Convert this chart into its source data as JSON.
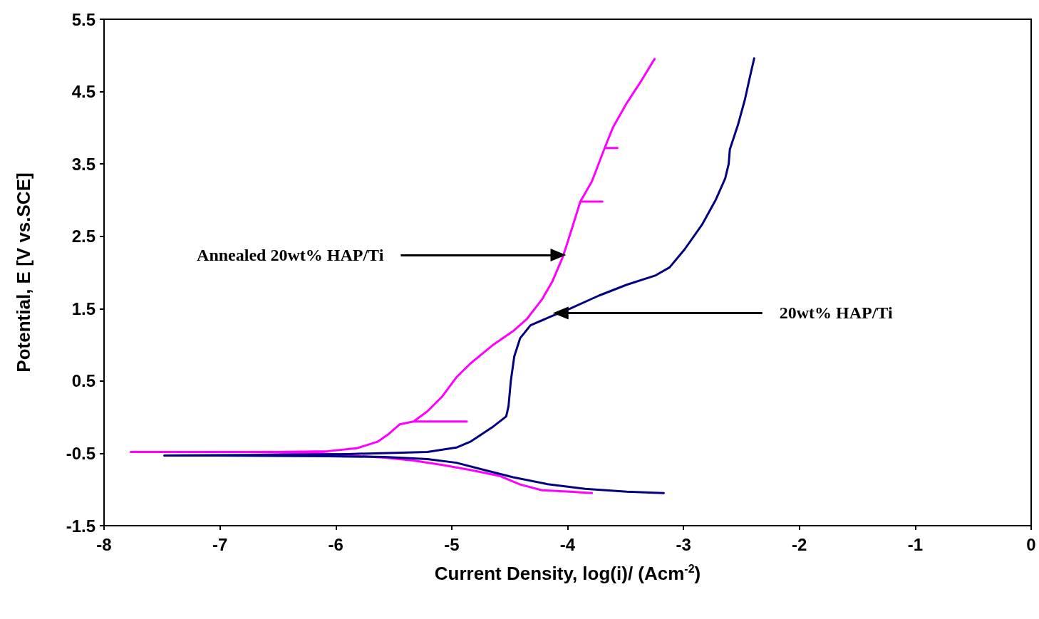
{
  "chart_data": {
    "type": "line",
    "xlabel": "Current Density, log(i)/ (Acm$^{-2}$)",
    "ylabel": "Potential, E [V vs.SCE]",
    "xlim": [
      -8,
      0
    ],
    "xticks": [
      -8,
      -7,
      -6,
      -5,
      -4,
      -3,
      -2,
      -1,
      0
    ],
    "ylim": [
      -1.5,
      5.5
    ],
    "yticks": [
      -1.5,
      -0.5,
      0.5,
      1.5,
      2.5,
      3.5,
      4.5,
      5.5
    ],
    "marker": "none",
    "line_style": "solid",
    "series": [
      {
        "color": "#ff00ff",
        "x": [
          -3.79,
          -3.98,
          -4.22,
          -4.41,
          -4.59,
          -4.84,
          -5.08,
          -5.33,
          -5.58,
          -5.88,
          -6.13,
          -6.75,
          -7.77,
          -6.5,
          -6.07,
          -5.82,
          -5.64,
          -5.55,
          -5.45,
          -5.33,
          -4.87,
          -5.33,
          -5.21,
          -5.08,
          -4.96,
          -4.84,
          -4.65,
          -4.47,
          -4.35,
          -4.22,
          -4.13,
          -4.04,
          -3.98,
          -3.89,
          -3.7,
          -3.89,
          -3.79,
          -3.68,
          -3.57,
          -3.68,
          -3.61,
          -3.49,
          -3.36,
          -3.25
        ],
        "values": [
          -1.05,
          -1.03,
          -1.01,
          -0.93,
          -0.81,
          -0.73,
          -0.66,
          -0.6,
          -0.56,
          -0.53,
          -0.5,
          -0.48,
          -0.48,
          -0.48,
          -0.47,
          -0.43,
          -0.34,
          -0.24,
          -0.1,
          -0.06,
          -0.06,
          -0.06,
          0.08,
          0.29,
          0.55,
          0.74,
          0.99,
          1.19,
          1.36,
          1.63,
          1.88,
          2.22,
          2.52,
          2.98,
          2.98,
          2.98,
          3.26,
          3.72,
          3.72,
          3.72,
          4.0,
          4.34,
          4.66,
          4.95
        ]
      },
      {
        "color": "#000080",
        "x": [
          -3.17,
          -3.49,
          -3.85,
          -4.16,
          -4.47,
          -4.72,
          -4.96,
          -5.21,
          -5.58,
          -6.07,
          -7.05,
          -7.48,
          -6.5,
          -5.9,
          -5.21,
          -4.96,
          -4.84,
          -4.65,
          -4.53,
          -4.51,
          -4.49,
          -4.46,
          -4.41,
          -4.32,
          -4.16,
          -3.98,
          -3.73,
          -3.49,
          -3.24,
          -3.12,
          -2.99,
          -2.84,
          -2.72,
          -2.64,
          -2.61,
          -2.6,
          -2.53,
          -2.47,
          -2.43,
          -2.39
        ],
        "values": [
          -1.05,
          -1.03,
          -0.99,
          -0.93,
          -0.83,
          -0.73,
          -0.63,
          -0.58,
          -0.55,
          -0.54,
          -0.53,
          -0.53,
          -0.52,
          -0.51,
          -0.48,
          -0.42,
          -0.34,
          -0.14,
          0.01,
          0.15,
          0.5,
          0.84,
          1.09,
          1.27,
          1.38,
          1.5,
          1.68,
          1.83,
          1.96,
          2.07,
          2.32,
          2.66,
          3.01,
          3.3,
          3.5,
          3.7,
          4.04,
          4.39,
          4.68,
          4.96
        ]
      }
    ],
    "annotations": [
      {
        "text": "Annealed 20wt% HAP/Ti",
        "x": -4.08,
        "y": 2.24
      },
      {
        "text": "20wt% HAP/Ti",
        "x": -4.06,
        "y": 1.44
      }
    ]
  }
}
